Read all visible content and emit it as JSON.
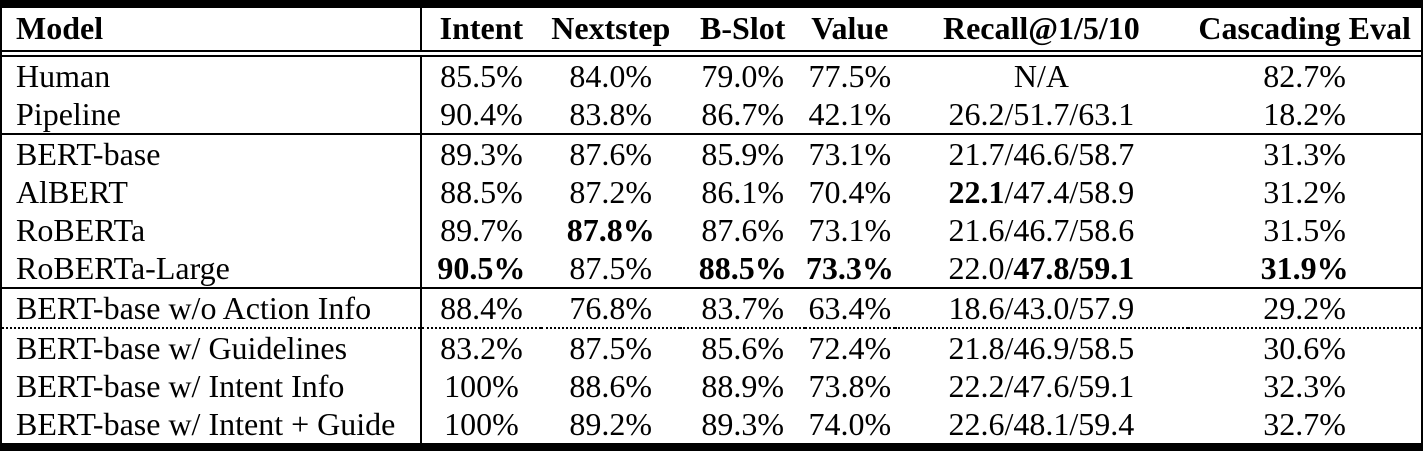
{
  "colors": {
    "text": "#000000",
    "background": "#ffffff",
    "rule": "#000000"
  },
  "table": {
    "columns": [
      {
        "label": "Model",
        "align": "left"
      },
      {
        "label": "Intent",
        "align": "center"
      },
      {
        "label": "Nextstep",
        "align": "center"
      },
      {
        "label": "B-Slot",
        "align": "center"
      },
      {
        "label": "Value",
        "align": "center"
      },
      {
        "label": "Recall@1/5/10",
        "align": "center"
      },
      {
        "label": "Cascading Eval",
        "align": "center"
      }
    ],
    "rows": [
      {
        "model": "Human",
        "separator_above": "none",
        "cells": [
          [
            {
              "text": "85.5%",
              "bold": false
            }
          ],
          [
            {
              "text": "84.0%",
              "bold": false
            }
          ],
          [
            {
              "text": "79.0%",
              "bold": false
            }
          ],
          [
            {
              "text": "77.5%",
              "bold": false
            }
          ],
          [
            {
              "text": "N/A",
              "bold": false
            }
          ],
          [
            {
              "text": "82.7%",
              "bold": false
            }
          ]
        ]
      },
      {
        "model": "Pipeline",
        "separator_above": "none",
        "cells": [
          [
            {
              "text": "90.4%",
              "bold": false
            }
          ],
          [
            {
              "text": "83.8%",
              "bold": false
            }
          ],
          [
            {
              "text": "86.7%",
              "bold": false
            }
          ],
          [
            {
              "text": "42.1%",
              "bold": false
            }
          ],
          [
            {
              "text": "26.2/51.7/63.1",
              "bold": false
            }
          ],
          [
            {
              "text": "18.2%",
              "bold": false
            }
          ]
        ]
      },
      {
        "model": "BERT-base",
        "separator_above": "solid",
        "cells": [
          [
            {
              "text": "89.3%",
              "bold": false
            }
          ],
          [
            {
              "text": "87.6%",
              "bold": false
            }
          ],
          [
            {
              "text": "85.9%",
              "bold": false
            }
          ],
          [
            {
              "text": "73.1%",
              "bold": false
            }
          ],
          [
            {
              "text": "21.7/46.6/58.7",
              "bold": false
            }
          ],
          [
            {
              "text": "31.3%",
              "bold": false
            }
          ]
        ]
      },
      {
        "model": "AlBERT",
        "separator_above": "none",
        "cells": [
          [
            {
              "text": "88.5%",
              "bold": false
            }
          ],
          [
            {
              "text": "87.2%",
              "bold": false
            }
          ],
          [
            {
              "text": "86.1%",
              "bold": false
            }
          ],
          [
            {
              "text": "70.4%",
              "bold": false
            }
          ],
          [
            {
              "text": "22.1",
              "bold": true
            },
            {
              "text": "/47.4/58.9",
              "bold": false
            }
          ],
          [
            {
              "text": "31.2%",
              "bold": false
            }
          ]
        ]
      },
      {
        "model": "RoBERTa",
        "separator_above": "none",
        "cells": [
          [
            {
              "text": "89.7%",
              "bold": false
            }
          ],
          [
            {
              "text": "87.8%",
              "bold": true
            }
          ],
          [
            {
              "text": "87.6%",
              "bold": false
            }
          ],
          [
            {
              "text": "73.1%",
              "bold": false
            }
          ],
          [
            {
              "text": "21.6/46.7/58.6",
              "bold": false
            }
          ],
          [
            {
              "text": "31.5%",
              "bold": false
            }
          ]
        ]
      },
      {
        "model": "RoBERTa-Large",
        "separator_above": "none",
        "cells": [
          [
            {
              "text": "90.5%",
              "bold": true
            }
          ],
          [
            {
              "text": "87.5%",
              "bold": false
            }
          ],
          [
            {
              "text": "88.5%",
              "bold": true
            }
          ],
          [
            {
              "text": "73.3%",
              "bold": true
            }
          ],
          [
            {
              "text": "22.0/",
              "bold": false
            },
            {
              "text": "47.8/59.1",
              "bold": true
            }
          ],
          [
            {
              "text": "31.9%",
              "bold": true
            }
          ]
        ]
      },
      {
        "model": "BERT-base w/o Action Info",
        "separator_above": "solid",
        "cells": [
          [
            {
              "text": "88.4%",
              "bold": false
            }
          ],
          [
            {
              "text": "76.8%",
              "bold": false
            }
          ],
          [
            {
              "text": "83.7%",
              "bold": false
            }
          ],
          [
            {
              "text": "63.4%",
              "bold": false
            }
          ],
          [
            {
              "text": "18.6/43.0/57.9",
              "bold": false
            }
          ],
          [
            {
              "text": "29.2%",
              "bold": false
            }
          ]
        ]
      },
      {
        "model": "BERT-base w/ Guidelines",
        "separator_above": "dotted",
        "cells": [
          [
            {
              "text": "83.2%",
              "bold": false
            }
          ],
          [
            {
              "text": "87.5%",
              "bold": false
            }
          ],
          [
            {
              "text": "85.6%",
              "bold": false
            }
          ],
          [
            {
              "text": "72.4%",
              "bold": false
            }
          ],
          [
            {
              "text": "21.8/46.9/58.5",
              "bold": false
            }
          ],
          [
            {
              "text": "30.6%",
              "bold": false
            }
          ]
        ]
      },
      {
        "model": "BERT-base w/ Intent Info",
        "separator_above": "none",
        "cells": [
          [
            {
              "text": "100%",
              "bold": false
            }
          ],
          [
            {
              "text": "88.6%",
              "bold": false
            }
          ],
          [
            {
              "text": "88.9%",
              "bold": false
            }
          ],
          [
            {
              "text": "73.8%",
              "bold": false
            }
          ],
          [
            {
              "text": "22.2/47.6/59.1",
              "bold": false
            }
          ],
          [
            {
              "text": "32.3%",
              "bold": false
            }
          ]
        ]
      },
      {
        "model": "BERT-base w/ Intent + Guide",
        "separator_above": "none",
        "cells": [
          [
            {
              "text": "100%",
              "bold": false
            }
          ],
          [
            {
              "text": "89.2%",
              "bold": false
            }
          ],
          [
            {
              "text": "89.3%",
              "bold": false
            }
          ],
          [
            {
              "text": "74.0%",
              "bold": false
            }
          ],
          [
            {
              "text": "22.6/48.1/59.4",
              "bold": false
            }
          ],
          [
            {
              "text": "32.7%",
              "bold": false
            }
          ]
        ]
      }
    ]
  }
}
